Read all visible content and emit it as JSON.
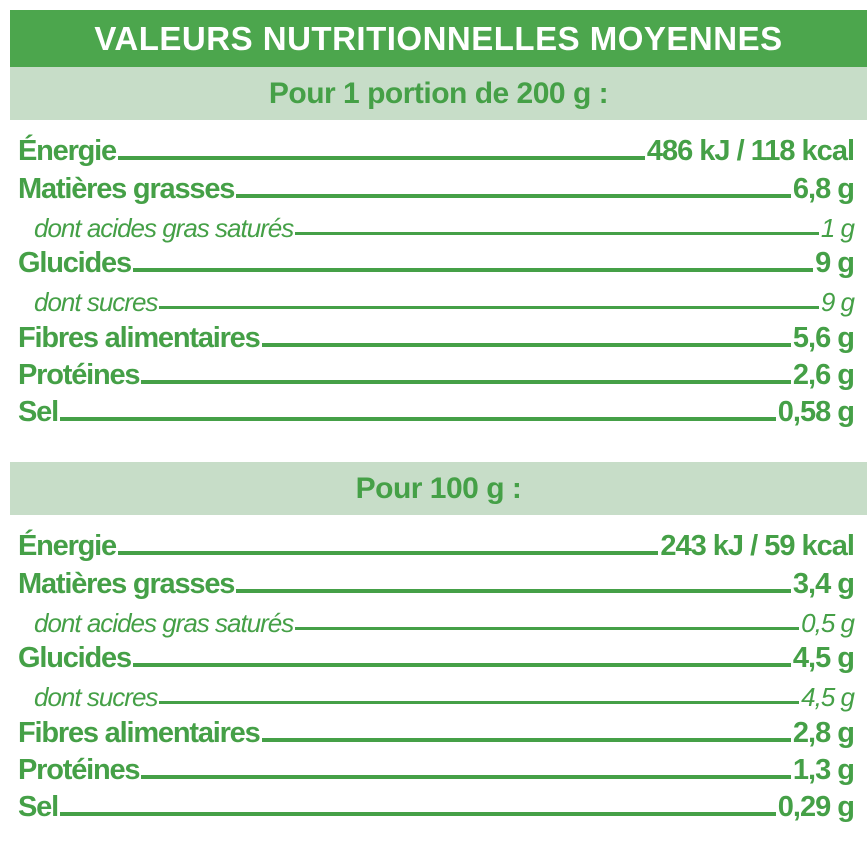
{
  "title": "VALEURS NUTRITIONNELLES MOYENNES",
  "colors": {
    "primary": "#4ca64d",
    "light": "#c7ddc8",
    "text": "#45a047"
  },
  "sections": [
    {
      "heading": "Pour 1 portion de 200 g :",
      "rows": [
        {
          "label": "Énergie",
          "value": "486 kJ / 118 kcal",
          "minor": false
        },
        {
          "label": "Matières grasses",
          "value": "6,8 g",
          "minor": false
        },
        {
          "label": "dont acides gras saturés",
          "value": "1 g",
          "minor": true
        },
        {
          "label": "Glucides",
          "value": "9 g",
          "minor": false
        },
        {
          "label": "dont sucres",
          "value": "9 g",
          "minor": true
        },
        {
          "label": "Fibres alimentaires",
          "value": "5,6 g",
          "minor": false
        },
        {
          "label": "Protéines",
          "value": "2,6 g",
          "minor": false
        },
        {
          "label": "Sel",
          "value": "0,58 g",
          "minor": false
        }
      ]
    },
    {
      "heading": "Pour 100 g :",
      "rows": [
        {
          "label": "Énergie",
          "value": "243 kJ / 59 kcal",
          "minor": false
        },
        {
          "label": "Matières grasses",
          "value": "3,4 g",
          "minor": false
        },
        {
          "label": "dont acides gras saturés",
          "value": "0,5 g",
          "minor": true
        },
        {
          "label": "Glucides",
          "value": "4,5 g",
          "minor": false
        },
        {
          "label": "dont sucres",
          "value": "4,5 g",
          "minor": true
        },
        {
          "label": "Fibres alimentaires",
          "value": "2,8 g",
          "minor": false
        },
        {
          "label": "Protéines",
          "value": "1,3 g",
          "minor": false
        },
        {
          "label": "Sel",
          "value": "0,29 g",
          "minor": false
        }
      ]
    }
  ]
}
